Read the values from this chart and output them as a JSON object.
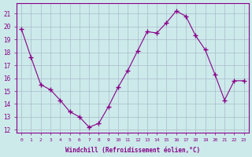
{
  "x": [
    0,
    1,
    2,
    3,
    4,
    5,
    6,
    7,
    8,
    9,
    10,
    11,
    12,
    13,
    14,
    15,
    16,
    17,
    18,
    19,
    20,
    21,
    22,
    23
  ],
  "y": [
    19.8,
    17.6,
    15.5,
    15.1,
    14.3,
    13.4,
    13.0,
    12.2,
    12.5,
    13.8,
    15.3,
    16.6,
    18.1,
    19.6,
    19.5,
    20.3,
    21.2,
    20.8,
    19.3,
    18.2,
    16.3,
    14.3,
    15.8,
    15.8
  ],
  "line_color": "#880088",
  "marker": "+",
  "marker_size": 4,
  "bg_color": "#cceaea",
  "grid_color": "#aabbcc",
  "ylabel_ticks": [
    12,
    13,
    14,
    15,
    16,
    17,
    18,
    19,
    20,
    21
  ],
  "xlabel_ticks": [
    0,
    1,
    2,
    3,
    4,
    5,
    6,
    7,
    8,
    9,
    10,
    11,
    12,
    13,
    14,
    15,
    16,
    17,
    18,
    19,
    20,
    21,
    22,
    23
  ],
  "xlabel": "Windchill (Refroidissement éolien,°C)",
  "ylim": [
    11.8,
    21.8
  ],
  "xlim": [
    -0.5,
    23.5
  ]
}
